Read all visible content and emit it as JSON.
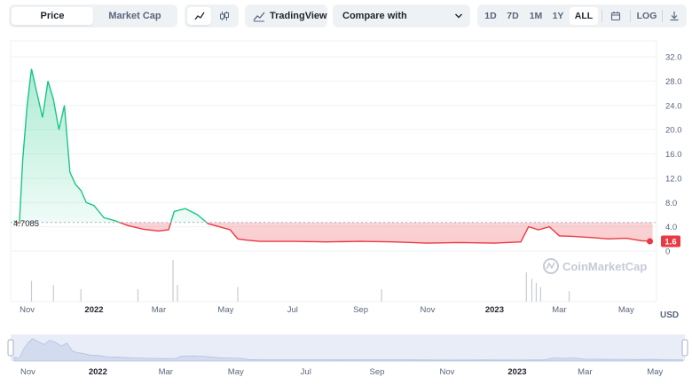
{
  "toolbar": {
    "price_tab": "Price",
    "market_cap_tab": "Market Cap",
    "line_chart_icon": "line-chart-icon",
    "candle_icon": "candlestick-icon",
    "tradingview_label": "TradingView",
    "compare_label": "Compare with",
    "ranges": [
      "1D",
      "7D",
      "1M",
      "1Y",
      "ALL"
    ],
    "active_range": "ALL",
    "log_label": "LOG",
    "calendar_icon": "calendar-icon",
    "download_icon": "download-icon"
  },
  "chart": {
    "baseline_label": "4.7085",
    "current_price_label": "1.6",
    "currency": "USD",
    "watermark": "CoinMarketCap",
    "y_ticks": [
      "32.0",
      "28.0",
      "24.0",
      "20.0",
      "16.0",
      "12.0",
      "8.0",
      "4.0",
      "0"
    ],
    "x_ticks": [
      "Nov",
      "2022",
      "Mar",
      "May",
      "Jul",
      "Sep",
      "Nov",
      "2023",
      "Mar",
      "May"
    ],
    "x_ticks_bold": [
      false,
      true,
      false,
      false,
      false,
      false,
      false,
      true,
      false,
      false
    ],
    "navigator_ticks": [
      "Nov",
      "2022",
      "Mar",
      "May",
      "Jul",
      "Sep",
      "Nov",
      "2023",
      "Mar",
      "May"
    ],
    "colors": {
      "up": "#16c784",
      "down": "#ea3943",
      "grid": "#eff2f5",
      "axis_text": "#58667e"
    }
  },
  "chart_data": {
    "type": "line",
    "series": [
      {
        "x": [
          "2021-10-20",
          "2021-10-22",
          "2021-10-25",
          "2021-10-28",
          "2021-11-01",
          "2021-11-05",
          "2021-11-10",
          "2021-11-15",
          "2021-11-20",
          "2021-11-25",
          "2021-11-30",
          "2021-12-05",
          "2021-12-10",
          "2021-12-15",
          "2021-12-20",
          "2021-12-25",
          "2022-01-01",
          "2022-01-10",
          "2022-01-20",
          "2022-02-01",
          "2022-02-15",
          "2022-03-01",
          "2022-03-10",
          "2022-03-15",
          "2022-03-25",
          "2022-04-05",
          "2022-04-15",
          "2022-04-25",
          "2022-05-05",
          "2022-05-12",
          "2022-05-20",
          "2022-06-01",
          "2022-07-01",
          "2022-08-01",
          "2022-09-01",
          "2022-10-01",
          "2022-11-01",
          "2022-12-01",
          "2023-01-01",
          "2023-01-25",
          "2023-02-01",
          "2023-02-10",
          "2023-02-20",
          "2023-03-01",
          "2023-03-15",
          "2023-04-01",
          "2023-04-15",
          "2023-05-01",
          "2023-05-15",
          "2023-05-25"
        ],
        "values": [
          5.0,
          4.7,
          4.6,
          15.0,
          24.0,
          30.0,
          26.0,
          22.0,
          28.0,
          25.0,
          20.0,
          24.0,
          13.0,
          11.0,
          10.0,
          8.0,
          7.5,
          5.5,
          5.0,
          4.2,
          3.6,
          3.3,
          3.5,
          6.5,
          7.0,
          6.0,
          4.5,
          4.0,
          3.5,
          2.0,
          1.8,
          1.6,
          1.6,
          1.5,
          1.6,
          1.5,
          1.3,
          1.4,
          1.3,
          1.5,
          4.0,
          3.5,
          4.0,
          2.5,
          2.4,
          2.2,
          2.0,
          2.1,
          1.7,
          1.6
        ]
      }
    ],
    "baseline": 4.7085,
    "ylim": [
      0,
      32
    ],
    "xlim": [
      "2021-10-17",
      "2023-05-27"
    ],
    "volume": [
      {
        "x": "2021-11-05",
        "v": 0.5
      },
      {
        "x": "2021-11-25",
        "v": 0.4
      },
      {
        "x": "2021-12-20",
        "v": 0.3
      },
      {
        "x": "2022-02-10",
        "v": 0.3
      },
      {
        "x": "2022-03-14",
        "v": 1.0
      },
      {
        "x": "2022-03-18",
        "v": 0.4
      },
      {
        "x": "2022-05-12",
        "v": 0.35
      },
      {
        "x": "2022-09-20",
        "v": 0.3
      },
      {
        "x": "2023-01-30",
        "v": 0.7
      },
      {
        "x": "2023-02-04",
        "v": 0.55
      },
      {
        "x": "2023-02-08",
        "v": 0.45
      },
      {
        "x": "2023-02-12",
        "v": 0.35
      },
      {
        "x": "2023-03-10",
        "v": 0.25
      }
    ]
  }
}
